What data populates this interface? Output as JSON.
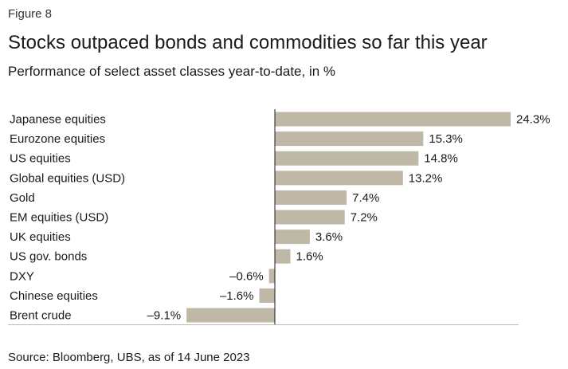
{
  "figure_label": "Figure 8",
  "title": "Stocks outpaced bonds and commodities so far this year",
  "subtitle": "Performance of select asset classes year-to-date, in %",
  "source": "Source: Bloomberg, UBS, as of 14 June 2023",
  "chart_data": {
    "type": "bar",
    "orientation": "horizontal",
    "categories": [
      "Japanese equities",
      "Eurozone equities",
      "US equities",
      "Global equities (USD)",
      "Gold",
      "EM equities (USD)",
      "UK equities",
      "US gov. bonds",
      "DXY",
      "Chinese equities",
      "Brent crude"
    ],
    "values": [
      24.3,
      15.3,
      14.8,
      13.2,
      7.4,
      7.2,
      3.6,
      1.6,
      -0.6,
      -1.6,
      -9.1
    ],
    "value_labels": [
      "24.3%",
      "15.3%",
      "14.8%",
      "13.2%",
      "7.4%",
      "7.2%",
      "3.6%",
      "1.6%",
      "–0.6%",
      "–1.6%",
      "–9.1%"
    ],
    "xlim": [
      -9.1,
      24.3
    ],
    "bar_color": "#bfb8a6",
    "axis_color": "#1a1a1a",
    "grid": false,
    "legend": false
  }
}
